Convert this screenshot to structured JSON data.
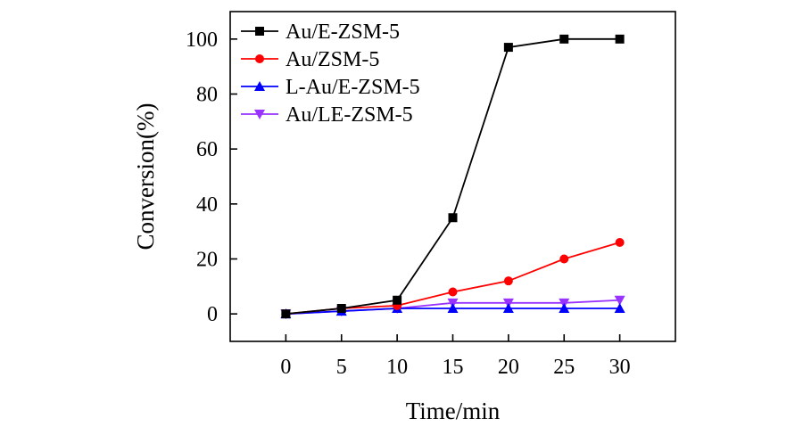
{
  "chart_data": {
    "type": "line",
    "xlabel": "Time/min",
    "ylabel": "Conversion(%)",
    "xlim": [
      -5,
      35
    ],
    "ylim": [
      -10,
      110
    ],
    "x": [
      0,
      5,
      10,
      15,
      20,
      25,
      30
    ],
    "xticks": [
      0,
      5,
      10,
      15,
      20,
      25,
      30
    ],
    "yticks": [
      0,
      20,
      40,
      60,
      80,
      100
    ],
    "grid": false,
    "legend_position": "top-left",
    "series": [
      {
        "name": "Au/E-ZSM-5",
        "color": "#000000",
        "marker": "square",
        "values": [
          0,
          2,
          5,
          35,
          97,
          100,
          100
        ]
      },
      {
        "name": "Au/ZSM-5",
        "color": "#ff0000",
        "marker": "circle",
        "values": [
          0,
          2,
          3,
          8,
          12,
          20,
          26
        ]
      },
      {
        "name": "L-Au/E-ZSM-5",
        "color": "#0000ff",
        "marker": "triangle-up",
        "values": [
          0,
          1,
          2,
          2,
          2,
          2,
          2
        ]
      },
      {
        "name": "Au/LE-ZSM-5",
        "color": "#9933ff",
        "marker": "triangle-down",
        "values": [
          0,
          1,
          2,
          4,
          4,
          4,
          5
        ]
      }
    ]
  }
}
